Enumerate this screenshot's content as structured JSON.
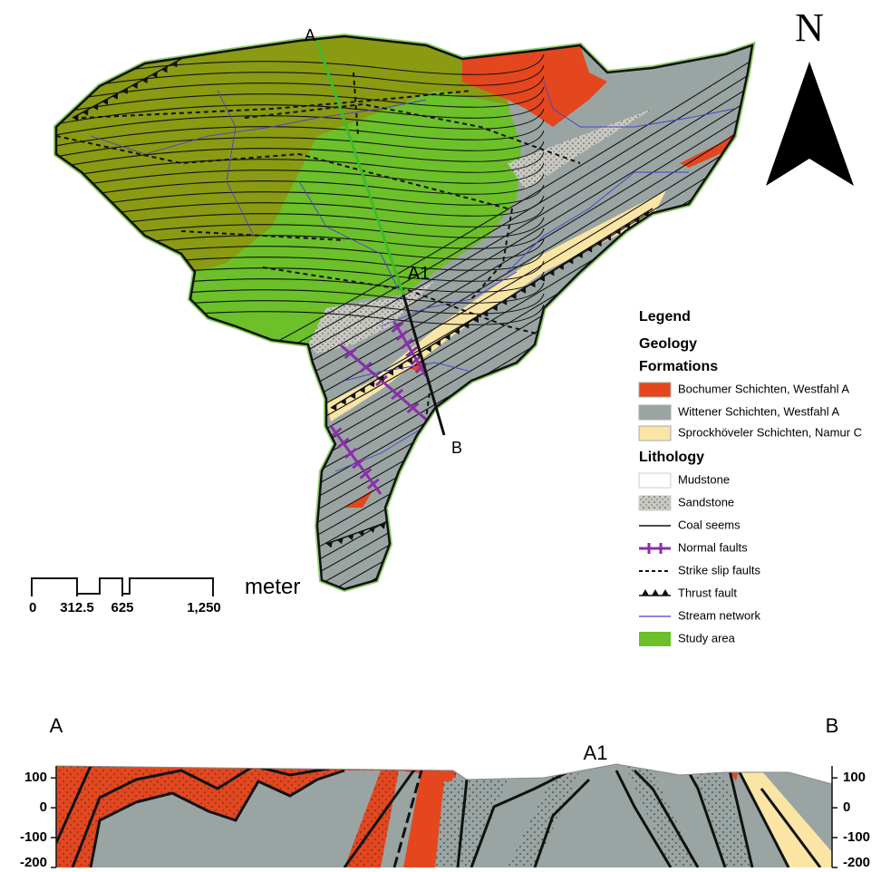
{
  "map": {
    "north": "N",
    "section_labels": [
      "A",
      "A1",
      "B"
    ]
  },
  "scale_bar": {
    "unit": "meter",
    "ticks": [
      0,
      312.5,
      625,
      {
        "value": 1250,
        "label": "1,250"
      }
    ]
  },
  "legend": {
    "title": "Legend",
    "geology": "Geology",
    "formations": {
      "title": "Formations",
      "items": [
        "Bochumer Schichten, Westfahl A",
        "Wittener Schichten, Westfahl A",
        "Sprockhöveler Schichten, Namur C"
      ]
    },
    "lithology": {
      "title": "Lithology",
      "items": [
        "Mudstone",
        "Sandstone",
        "Coal seems",
        "Normal faults",
        "Strike slip faults",
        "Thrust fault",
        "Stream network",
        "Study area"
      ]
    }
  },
  "cross_section": {
    "labels": [
      "A",
      "A1",
      "B"
    ],
    "ylim": [
      -200,
      140
    ],
    "yticks": [
      100,
      0,
      -100,
      -200
    ]
  }
}
